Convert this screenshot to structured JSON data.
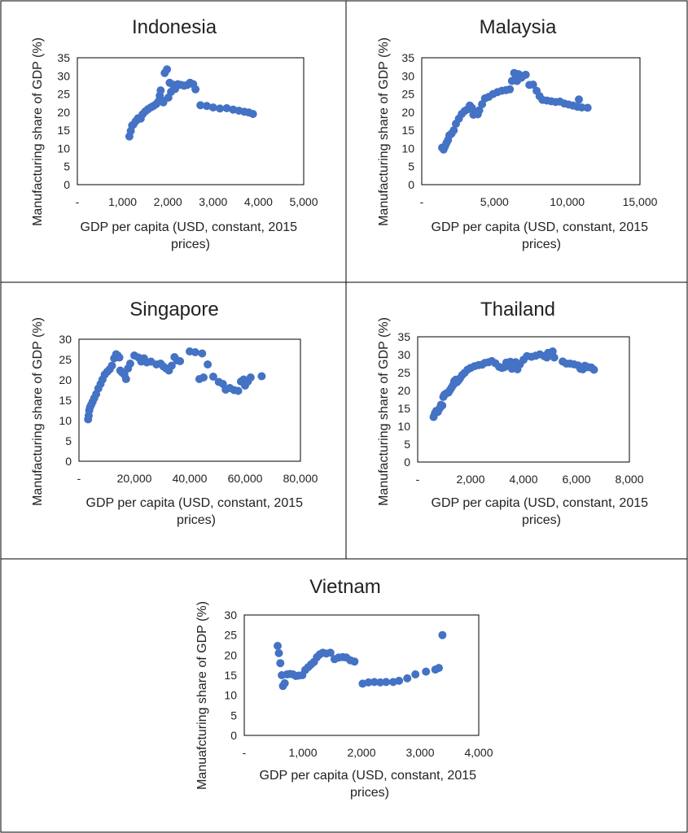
{
  "colors": {
    "marker": "#4472C4",
    "frame": "#000000",
    "text": "#222222"
  },
  "chart_data": [
    {
      "type": "scatter",
      "title": "Indonesia",
      "xlabel": "GDP per capita (USD, constant, 2015 prices)",
      "xlabel_lines": [
        "GDP per capita (USD, constant, 2015",
        "prices)"
      ],
      "ylabel": "Manufacturing share of GDP (%)",
      "xlim": [
        0,
        5000
      ],
      "ylim": [
        0,
        35
      ],
      "xticks": [
        0,
        1000,
        2000,
        3000,
        4000,
        5000
      ],
      "xtick_labels": [
        "-",
        "1,000",
        "2,000",
        "3,000",
        "4,000",
        "5,000"
      ],
      "yticks": [
        0,
        5,
        10,
        15,
        20,
        25,
        30,
        35
      ],
      "ytick_labels": [
        "0",
        "5",
        "10",
        "15",
        "20",
        "25",
        "30",
        "35"
      ],
      "grid": false,
      "legend": "none",
      "points": [
        [
          1150,
          13.3
        ],
        [
          1180,
          14.8
        ],
        [
          1210,
          16.3
        ],
        [
          1240,
          16.6
        ],
        [
          1290,
          17.5
        ],
        [
          1340,
          18.3
        ],
        [
          1400,
          18.2
        ],
        [
          1440,
          19.4
        ],
        [
          1500,
          20.2
        ],
        [
          1560,
          20.8
        ],
        [
          1620,
          21.3
        ],
        [
          1680,
          21.7
        ],
        [
          1740,
          22.2
        ],
        [
          1790,
          22.9
        ],
        [
          1820,
          24.5
        ],
        [
          1840,
          26.0
        ],
        [
          1870,
          23.3
        ],
        [
          1900,
          22.7
        ],
        [
          1930,
          30.8
        ],
        [
          1980,
          31.8
        ],
        [
          2010,
          24.0
        ],
        [
          2040,
          28.1
        ],
        [
          2070,
          25.6
        ],
        [
          2110,
          27.6
        ],
        [
          2160,
          26.4
        ],
        [
          2220,
          27.7
        ],
        [
          2290,
          27.5
        ],
        [
          2360,
          27.3
        ],
        [
          2430,
          27.5
        ],
        [
          2490,
          28.1
        ],
        [
          2560,
          27.7
        ],
        [
          2610,
          26.3
        ],
        [
          2720,
          21.9
        ],
        [
          2860,
          21.7
        ],
        [
          3000,
          21.3
        ],
        [
          3150,
          21.0
        ],
        [
          3300,
          21.1
        ],
        [
          3440,
          20.7
        ],
        [
          3570,
          20.4
        ],
        [
          3690,
          20.1
        ],
        [
          3790,
          19.9
        ],
        [
          3880,
          19.5
        ]
      ]
    },
    {
      "type": "scatter",
      "title": "Malaysia",
      "xlabel": "GDP per capita (USD, constant, 2015 prices)",
      "xlabel_lines": [
        "GDP per capita (USD, constant, 2015",
        "prices)"
      ],
      "ylabel": "Manufacturing share of GDP (%)",
      "xlim": [
        0,
        15000
      ],
      "ylim": [
        0,
        35
      ],
      "xticks": [
        0,
        5000,
        10000,
        15000
      ],
      "xtick_labels": [
        "-",
        "5,000",
        "10,000",
        "15,000"
      ],
      "yticks": [
        0,
        5,
        10,
        15,
        20,
        25,
        30,
        35
      ],
      "ytick_labels": [
        "0",
        "5",
        "10",
        "15",
        "20",
        "25",
        "30",
        "35"
      ],
      "grid": false,
      "legend": "none",
      "points": [
        [
          1400,
          10.2
        ],
        [
          1500,
          9.7
        ],
        [
          1600,
          10.6
        ],
        [
          1700,
          11.5
        ],
        [
          1800,
          12.3
        ],
        [
          1900,
          13.6
        ],
        [
          2050,
          14.1
        ],
        [
          2200,
          15.0
        ],
        [
          2350,
          16.8
        ],
        [
          2550,
          18.2
        ],
        [
          2750,
          19.5
        ],
        [
          2950,
          20.3
        ],
        [
          3150,
          20.8
        ],
        [
          3300,
          21.8
        ],
        [
          3450,
          21.2
        ],
        [
          3550,
          19.3
        ],
        [
          3700,
          20.0
        ],
        [
          3850,
          19.4
        ],
        [
          3950,
          20.5
        ],
        [
          4150,
          22.2
        ],
        [
          4350,
          23.8
        ],
        [
          4600,
          24.2
        ],
        [
          4900,
          25.0
        ],
        [
          5200,
          25.5
        ],
        [
          5500,
          25.9
        ],
        [
          5800,
          26.1
        ],
        [
          6050,
          26.3
        ],
        [
          6200,
          28.6
        ],
        [
          6350,
          30.8
        ],
        [
          6450,
          29.2
        ],
        [
          6550,
          28.6
        ],
        [
          6650,
          30.5
        ],
        [
          6750,
          29.8
        ],
        [
          6850,
          29.5
        ],
        [
          6950,
          30.0
        ],
        [
          7150,
          30.3
        ],
        [
          7400,
          27.5
        ],
        [
          7650,
          27.6
        ],
        [
          7900,
          25.9
        ],
        [
          8100,
          24.4
        ],
        [
          8300,
          23.4
        ],
        [
          8600,
          23.2
        ],
        [
          8900,
          23.0
        ],
        [
          9200,
          22.8
        ],
        [
          9500,
          22.9
        ],
        [
          9800,
          22.4
        ],
        [
          10100,
          22.1
        ],
        [
          10400,
          21.8
        ],
        [
          10700,
          21.5
        ],
        [
          10800,
          23.5
        ],
        [
          11000,
          21.3
        ],
        [
          11400,
          21.2
        ]
      ]
    },
    {
      "type": "scatter",
      "title": "Singapore",
      "xlabel": "GDP per capita (USD, constant, 2015 prices)",
      "xlabel_lines": [
        "GDP per capita (USD, constant, 2015",
        "prices)"
      ],
      "ylabel": "Manufacturing share of GDP (%)",
      "xlim": [
        0,
        80000
      ],
      "ylim": [
        0,
        30
      ],
      "xticks": [
        0,
        20000,
        40000,
        60000,
        80000
      ],
      "xtick_labels": [
        "-",
        "20,000",
        "40,000",
        "60,000",
        "80,000"
      ],
      "yticks": [
        0,
        5,
        10,
        15,
        20,
        25,
        30
      ],
      "ytick_labels": [
        "0",
        "5",
        "10",
        "15",
        "20",
        "25",
        "30"
      ],
      "grid": false,
      "legend": "none",
      "points": [
        [
          3300,
          10.3
        ],
        [
          3500,
          11.2
        ],
        [
          3700,
          12.5
        ],
        [
          4000,
          13.3
        ],
        [
          4400,
          13.9
        ],
        [
          4900,
          14.6
        ],
        [
          5500,
          15.5
        ],
        [
          6200,
          16.5
        ],
        [
          7000,
          17.9
        ],
        [
          7800,
          19.0
        ],
        [
          8500,
          20.1
        ],
        [
          9300,
          21.3
        ],
        [
          10200,
          22.0
        ],
        [
          11100,
          22.6
        ],
        [
          11900,
          23.5
        ],
        [
          12700,
          25.3
        ],
        [
          13400,
          26.3
        ],
        [
          14000,
          26.0
        ],
        [
          14600,
          25.5
        ],
        [
          14900,
          22.3
        ],
        [
          15600,
          21.8
        ],
        [
          16400,
          21.3
        ],
        [
          17000,
          20.2
        ],
        [
          17700,
          22.8
        ],
        [
          18500,
          24.0
        ],
        [
          20000,
          26.0
        ],
        [
          21500,
          25.5
        ],
        [
          22500,
          24.5
        ],
        [
          23500,
          25.3
        ],
        [
          24500,
          24.3
        ],
        [
          26000,
          24.5
        ],
        [
          28000,
          23.8
        ],
        [
          29500,
          24.0
        ],
        [
          30500,
          23.3
        ],
        [
          31500,
          22.8
        ],
        [
          32500,
          22.3
        ],
        [
          33500,
          23.5
        ],
        [
          34500,
          25.6
        ],
        [
          35500,
          24.8
        ],
        [
          36500,
          24.6
        ],
        [
          40000,
          27.0
        ],
        [
          42000,
          26.8
        ],
        [
          43500,
          20.2
        ],
        [
          44500,
          26.5
        ],
        [
          45000,
          20.6
        ],
        [
          46500,
          23.8
        ],
        [
          48500,
          20.8
        ],
        [
          50500,
          19.5
        ],
        [
          52000,
          19.0
        ],
        [
          53000,
          17.6
        ],
        [
          54500,
          18.0
        ],
        [
          56000,
          17.5
        ],
        [
          57500,
          17.3
        ],
        [
          58500,
          19.6
        ],
        [
          59500,
          20.1
        ],
        [
          60000,
          18.6
        ],
        [
          61000,
          19.6
        ],
        [
          62000,
          20.6
        ],
        [
          66000,
          20.9
        ]
      ]
    },
    {
      "type": "scatter",
      "title": "Thailand",
      "xlabel": "GDP per capita (USD, constant, 2015 prices)",
      "xlabel_lines": [
        "GDP per capita (USD, constant, 2015",
        "prices)"
      ],
      "ylabel": "Manufacturing share of GDP (%)",
      "xlim": [
        0,
        8000
      ],
      "ylim": [
        0,
        35
      ],
      "xticks": [
        0,
        2000,
        4000,
        6000,
        8000
      ],
      "xtick_labels": [
        "-",
        "2,000",
        "4,000",
        "6,000",
        "8,000"
      ],
      "yticks": [
        0,
        5,
        10,
        15,
        20,
        25,
        30,
        35
      ],
      "ytick_labels": [
        "0",
        "5",
        "10",
        "15",
        "20",
        "25",
        "30",
        "35"
      ],
      "grid": false,
      "legend": "none",
      "points": [
        [
          600,
          12.6
        ],
        [
          650,
          13.6
        ],
        [
          700,
          14.3
        ],
        [
          760,
          14.0
        ],
        [
          830,
          15.0
        ],
        [
          880,
          16.0
        ],
        [
          930,
          15.8
        ],
        [
          970,
          18.2
        ],
        [
          1010,
          18.8
        ],
        [
          1060,
          19.1
        ],
        [
          1110,
          19.3
        ],
        [
          1160,
          19.4
        ],
        [
          1220,
          20.1
        ],
        [
          1280,
          20.8
        ],
        [
          1340,
          21.5
        ],
        [
          1380,
          22.6
        ],
        [
          1440,
          23.0
        ],
        [
          1480,
          22.3
        ],
        [
          1540,
          22.8
        ],
        [
          1600,
          23.4
        ],
        [
          1680,
          24.3
        ],
        [
          1770,
          24.9
        ],
        [
          1880,
          25.8
        ],
        [
          2000,
          26.3
        ],
        [
          2150,
          26.8
        ],
        [
          2300,
          27.1
        ],
        [
          2430,
          27.2
        ],
        [
          2540,
          27.7
        ],
        [
          2680,
          27.9
        ],
        [
          2800,
          28.2
        ],
        [
          2940,
          27.6
        ],
        [
          3080,
          26.6
        ],
        [
          3180,
          26.3
        ],
        [
          3280,
          26.5
        ],
        [
          3350,
          27.8
        ],
        [
          3430,
          27.5
        ],
        [
          3500,
          28.0
        ],
        [
          3560,
          26.1
        ],
        [
          3640,
          26.5
        ],
        [
          3700,
          27.9
        ],
        [
          3770,
          25.9
        ],
        [
          3860,
          27.3
        ],
        [
          4000,
          28.6
        ],
        [
          4130,
          29.6
        ],
        [
          4300,
          29.4
        ],
        [
          4460,
          29.7
        ],
        [
          4620,
          30.1
        ],
        [
          4780,
          29.6
        ],
        [
          4880,
          29.2
        ],
        [
          4930,
          30.5
        ],
        [
          5100,
          30.9
        ],
        [
          5160,
          29.2
        ],
        [
          5480,
          28.1
        ],
        [
          5620,
          27.5
        ],
        [
          5760,
          27.5
        ],
        [
          5910,
          27.3
        ],
        [
          6060,
          27.0
        ],
        [
          6150,
          26.1
        ],
        [
          6240,
          25.9
        ],
        [
          6320,
          26.9
        ],
        [
          6440,
          26.5
        ],
        [
          6560,
          26.4
        ],
        [
          6660,
          25.8
        ]
      ]
    },
    {
      "type": "scatter",
      "title": "Vietnam",
      "xlabel": "GDP per capita (USD, constant, 2015 prices)",
      "xlabel_lines": [
        "GDP per capita (USD, constant, 2015",
        "prices)"
      ],
      "ylabel": "Manuafcturing share of GDP (%)",
      "xlim": [
        0,
        4000
      ],
      "ylim": [
        0,
        30
      ],
      "xticks": [
        0,
        1000,
        2000,
        3000,
        4000
      ],
      "xtick_labels": [
        "-",
        "1,000",
        "2,000",
        "3,000",
        "4,000"
      ],
      "yticks": [
        0,
        5,
        10,
        15,
        20,
        25,
        30
      ],
      "ytick_labels": [
        "0",
        "5",
        "10",
        "15",
        "20",
        "25",
        "30"
      ],
      "grid": false,
      "legend": "none",
      "points": [
        [
          570,
          22.3
        ],
        [
          590,
          20.5
        ],
        [
          615,
          18.0
        ],
        [
          640,
          15.0
        ],
        [
          660,
          12.3
        ],
        [
          690,
          13.0
        ],
        [
          730,
          15.2
        ],
        [
          780,
          15.3
        ],
        [
          830,
          15.2
        ],
        [
          880,
          14.8
        ],
        [
          930,
          14.9
        ],
        [
          990,
          15.0
        ],
        [
          1040,
          16.3
        ],
        [
          1090,
          17.0
        ],
        [
          1140,
          17.7
        ],
        [
          1190,
          18.3
        ],
        [
          1240,
          19.5
        ],
        [
          1290,
          20.2
        ],
        [
          1340,
          20.6
        ],
        [
          1400,
          20.4
        ],
        [
          1470,
          20.6
        ],
        [
          1540,
          19.0
        ],
        [
          1610,
          19.4
        ],
        [
          1680,
          19.5
        ],
        [
          1740,
          19.4
        ],
        [
          1810,
          18.7
        ],
        [
          1880,
          18.4
        ],
        [
          2020,
          12.9
        ],
        [
          2120,
          13.2
        ],
        [
          2220,
          13.3
        ],
        [
          2320,
          13.2
        ],
        [
          2420,
          13.3
        ],
        [
          2540,
          13.3
        ],
        [
          2640,
          13.6
        ],
        [
          2780,
          14.2
        ],
        [
          2920,
          15.2
        ],
        [
          3100,
          15.9
        ],
        [
          3260,
          16.4
        ],
        [
          3320,
          16.8
        ],
        [
          3380,
          25.0
        ]
      ]
    }
  ]
}
